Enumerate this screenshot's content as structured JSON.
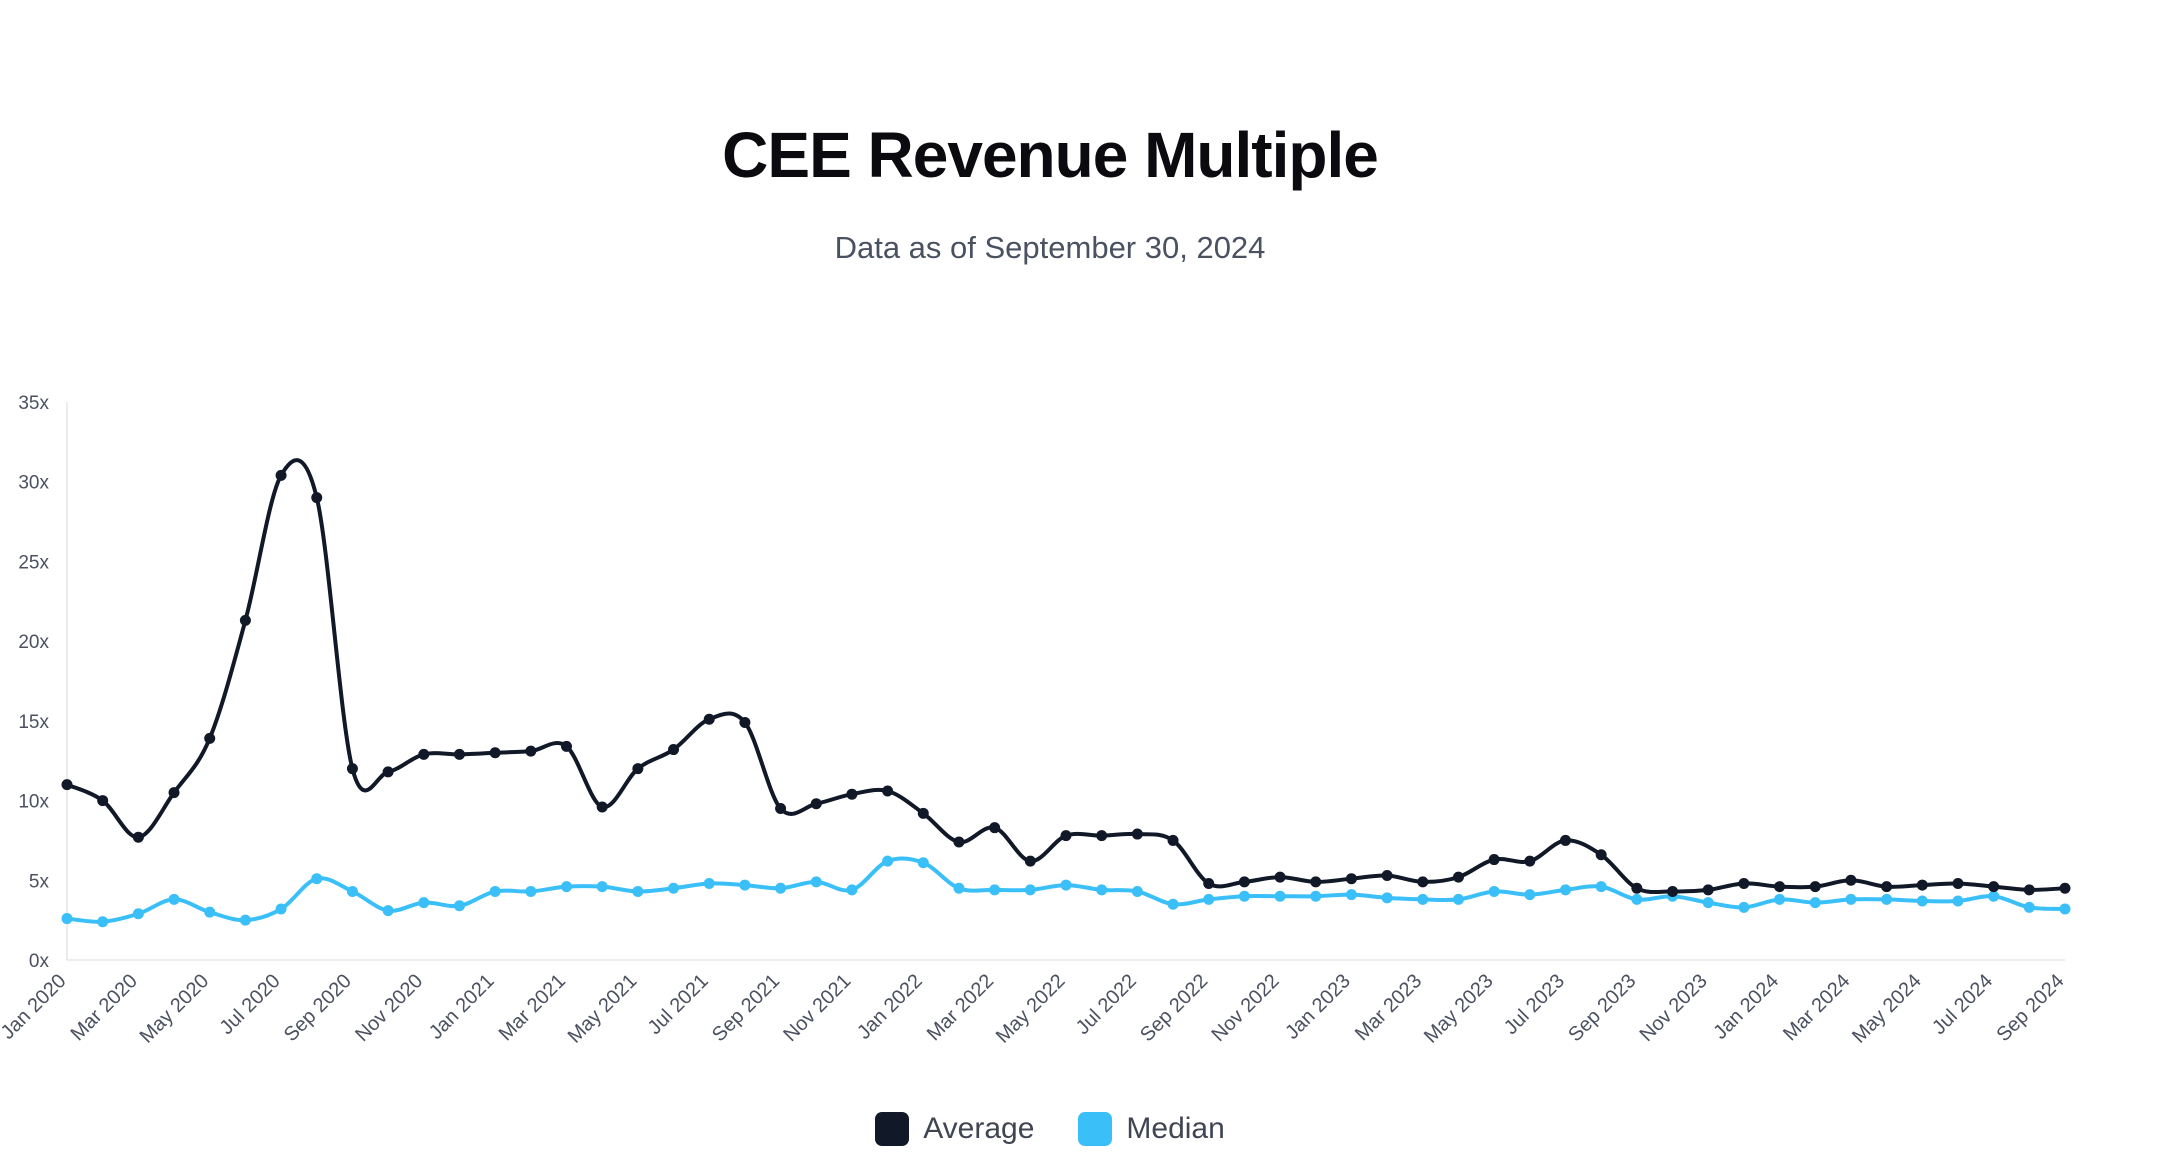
{
  "chart_data": {
    "type": "line",
    "title": "CEE Revenue Multiple",
    "subtitle": "Data as of September 30, 2024",
    "xlabel": "",
    "ylabel": "",
    "ylim": [
      0,
      35
    ],
    "y_ticks": [
      "0x",
      "5x",
      "10x",
      "15x",
      "20x",
      "25x",
      "30x",
      "35x"
    ],
    "x": [
      "Jan 2020",
      "Feb 2020",
      "Mar 2020",
      "Apr 2020",
      "May 2020",
      "Jun 2020",
      "Jul 2020",
      "Aug 2020",
      "Sep 2020",
      "Oct 2020",
      "Nov 2020",
      "Dec 2020",
      "Jan 2021",
      "Feb 2021",
      "Mar 2021",
      "Apr 2021",
      "May 2021",
      "Jun 2021",
      "Jul 2021",
      "Aug 2021",
      "Sep 2021",
      "Oct 2021",
      "Nov 2021",
      "Dec 2021",
      "Jan 2022",
      "Feb 2022",
      "Mar 2022",
      "Apr 2022",
      "May 2022",
      "Jun 2022",
      "Jul 2022",
      "Aug 2022",
      "Sep 2022",
      "Oct 2022",
      "Nov 2022",
      "Dec 2022",
      "Jan 2023",
      "Feb 2023",
      "Mar 2023",
      "Apr 2023",
      "May 2023",
      "Jun 2023",
      "Jul 2023",
      "Aug 2023",
      "Sep 2023",
      "Oct 2023",
      "Nov 2023",
      "Dec 2023",
      "Jan 2024",
      "Feb 2024",
      "Mar 2024",
      "Apr 2024",
      "May 2024",
      "Jun 2024",
      "Jul 2024",
      "Aug 2024",
      "Sep 2024"
    ],
    "x_tick_labels": [
      "Jan 2020",
      "Mar 2020",
      "May 2020",
      "Jul 2020",
      "Sep 2020",
      "Nov 2020",
      "Jan 2021",
      "Mar 2021",
      "May 2021",
      "Jul 2021",
      "Sep 2021",
      "Nov 2021",
      "Jan 2022",
      "Mar 2022",
      "May 2022",
      "Jul 2022",
      "Sep 2022",
      "Nov 2022",
      "Jan 2023",
      "Mar 2023",
      "May 2023",
      "Jul 2023",
      "Sep 2023",
      "Nov 2023",
      "Jan 2024",
      "Mar 2024",
      "May 2024",
      "Jul 2024",
      "Sep 2024"
    ],
    "series": [
      {
        "name": "Average",
        "color": "#111827",
        "values": [
          11.0,
          10.0,
          7.7,
          10.5,
          13.9,
          21.3,
          30.4,
          29.0,
          12.0,
          11.8,
          12.9,
          12.9,
          13.0,
          13.1,
          13.4,
          9.6,
          12.0,
          13.2,
          15.1,
          14.9,
          9.5,
          9.8,
          10.4,
          10.6,
          9.2,
          7.4,
          8.3,
          6.2,
          7.8,
          7.8,
          7.9,
          7.5,
          4.8,
          4.9,
          5.2,
          4.9,
          5.1,
          5.3,
          4.9,
          5.2,
          6.3,
          6.2,
          7.5,
          6.6,
          4.5,
          4.3,
          4.4,
          4.8,
          4.6,
          4.6,
          5.0,
          4.6,
          4.7,
          4.8,
          4.6,
          4.4,
          4.5
        ]
      },
      {
        "name": "Median",
        "color": "#3ABFF8",
        "values": [
          2.6,
          2.4,
          2.9,
          3.8,
          3.0,
          2.5,
          3.2,
          5.1,
          4.3,
          3.1,
          3.6,
          3.4,
          4.3,
          4.3,
          4.6,
          4.6,
          4.3,
          4.5,
          4.8,
          4.7,
          4.5,
          4.9,
          4.4,
          6.2,
          6.1,
          4.5,
          4.4,
          4.4,
          4.7,
          4.4,
          4.3,
          3.5,
          3.8,
          4.0,
          4.0,
          4.0,
          4.1,
          3.9,
          3.8,
          3.8,
          4.3,
          4.1,
          4.4,
          4.6,
          3.8,
          4.0,
          3.6,
          3.3,
          3.8,
          3.6,
          3.8,
          3.8,
          3.7,
          3.7,
          4.0,
          3.3,
          3.2
        ]
      }
    ],
    "legend_position": "bottom-center",
    "grid": false
  }
}
